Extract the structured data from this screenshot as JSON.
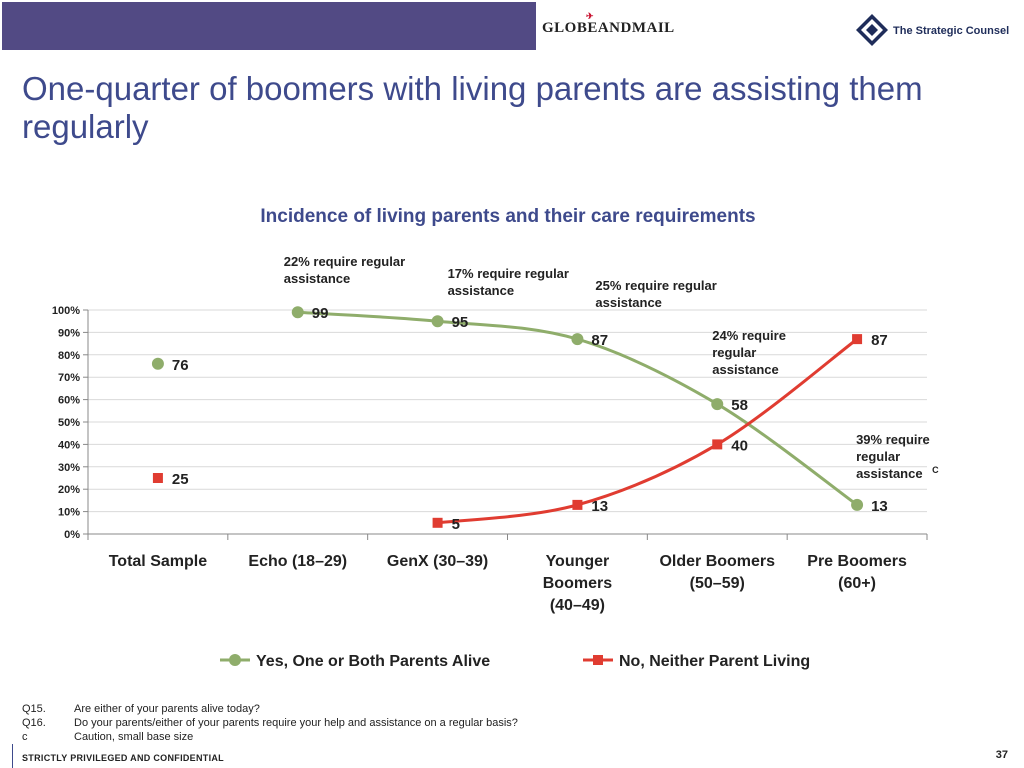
{
  "header": {
    "bar_color": "#524a84",
    "brand_globe": "GLOBEANDMAIL",
    "brand_counsel": "The Strategic Counsel",
    "logo_icon": "diamond-logo-icon",
    "plane_icon": "plane-icon"
  },
  "title": "One-quarter of boomers with living parents are assisting them regularly",
  "chart_data": {
    "type": "line",
    "title": "Incidence of living parents and their care requirements",
    "categories": [
      "Total Sample",
      "Echo (18–29)",
      "GenX (30–39)",
      "Younger Boomers (40–49)",
      "Older Boomers (50–59)",
      "Pre Boomers (60+)"
    ],
    "category_lines": [
      [
        "Total Sample"
      ],
      [
        "Echo (18–29)"
      ],
      [
        "GenX (30–39)"
      ],
      [
        "Younger",
        "Boomers",
        "(40–49)"
      ],
      [
        "Older Boomers",
        "(50–59)"
      ],
      [
        "Pre Boomers",
        "(60+)"
      ]
    ],
    "y_ticks": [
      "0%",
      "10%",
      "20%",
      "30%",
      "40%",
      "50%",
      "60%",
      "70%",
      "80%",
      "90%",
      "100%"
    ],
    "ylim": [
      0,
      100
    ],
    "grid": true,
    "legend_position": "bottom",
    "series": [
      {
        "name": "Yes, One or Both Parents Alive",
        "color": "#8fad6b",
        "marker": "circle",
        "values": [
          76,
          99,
          95,
          87,
          58,
          13
        ],
        "connect_from": 1
      },
      {
        "name": "No, Neither Parent Living",
        "color": "#e03c31",
        "marker": "square",
        "values": [
          25,
          null,
          5,
          13,
          40,
          87
        ],
        "connect_from": 2
      }
    ],
    "annotations": [
      {
        "category": "Echo (18–29)",
        "lines": [
          "22% require regular",
          "assistance"
        ]
      },
      {
        "category": "GenX (30–39)",
        "lines": [
          "17% require regular",
          "assistance"
        ]
      },
      {
        "category": "Younger Boomers (40–49)",
        "lines": [
          "25% require regular",
          "assistance"
        ]
      },
      {
        "category": "Older Boomers (50–59)",
        "lines": [
          "24% require",
          "regular",
          "assistance"
        ]
      },
      {
        "category": "Pre Boomers (60+)",
        "lines": [
          "39% require",
          "regular",
          "assistance"
        ],
        "superscript": "C"
      }
    ]
  },
  "footnotes": [
    {
      "key": "Q15.",
      "text": "Are either of your parents alive today?"
    },
    {
      "key": "Q16.",
      "text": "Do your parents/either of your parents require your help and assistance on a regular basis?"
    },
    {
      "key": "c",
      "text": "Caution, small base size"
    }
  ],
  "footer": {
    "confidential": "STRICTLY PRIVILEGED AND CONFIDENTIAL",
    "page": "37"
  }
}
